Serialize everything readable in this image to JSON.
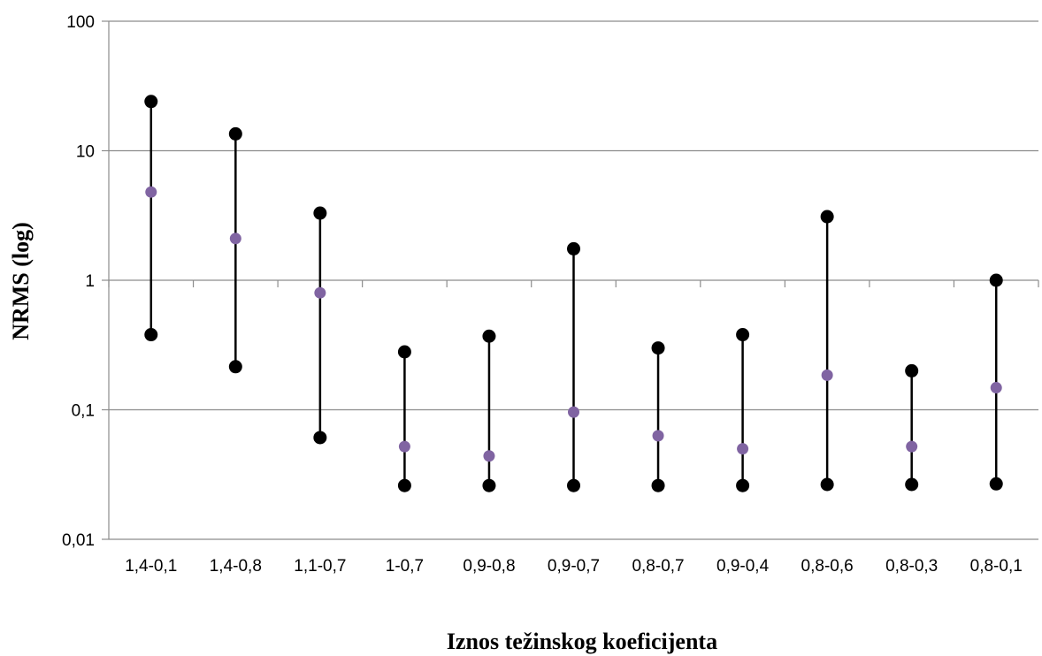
{
  "chart_data": {
    "type": "scatter",
    "title": "",
    "xlabel": "Iznos težinskog koeficijenta",
    "ylabel": "NRMS (log)",
    "y_scale": "log",
    "ylim": [
      0.01,
      100
    ],
    "y_tick_labels": [
      "0,01",
      "0,1",
      "1",
      "10",
      "100"
    ],
    "grid": "horizontal",
    "legend": "none",
    "categories": [
      "1,4-0,1",
      "1,4-0,8",
      "1,1-0,7",
      "1-0,7",
      "0,9-0,8",
      "0,9-0,7",
      "0,8-0,7",
      "0,9-0,4",
      "0,8-0,6",
      "0,8-0,3",
      "0,8-0,1"
    ],
    "series": [
      {
        "values": [
          24,
          13.5,
          3.3,
          0.28,
          0.37,
          1.75,
          0.3,
          0.38,
          3.1,
          0.2,
          1.0
        ],
        "color": "#000000"
      },
      {
        "values": [
          4.8,
          2.1,
          0.8,
          0.052,
          0.044,
          0.096,
          0.063,
          0.05,
          0.185,
          0.052,
          0.148
        ],
        "color": "#8064a2"
      },
      {
        "values": [
          0.38,
          0.215,
          0.061,
          0.026,
          0.026,
          0.026,
          0.026,
          0.026,
          0.0265,
          0.0265,
          0.0268
        ],
        "color": "#000000"
      }
    ]
  }
}
